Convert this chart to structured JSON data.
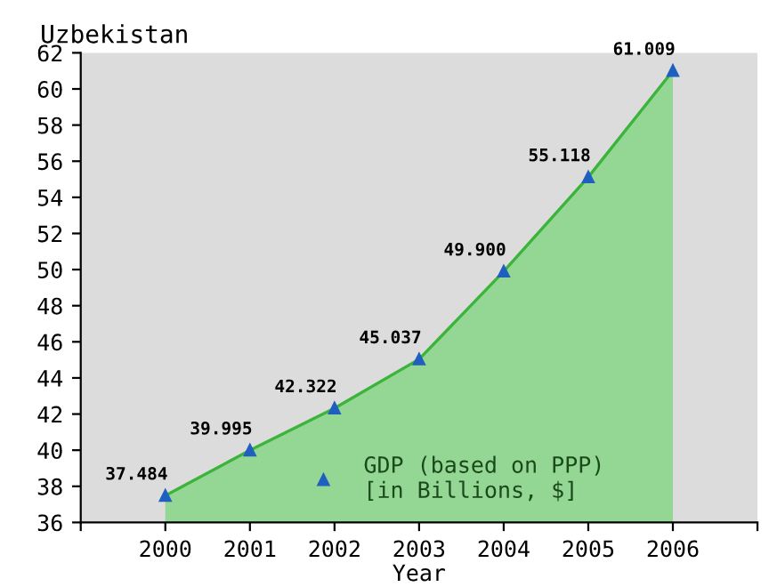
{
  "chart_data": {
    "type": "area",
    "title": "Uzbekistan",
    "xlabel": "Year",
    "x": [
      2000,
      2001,
      2002,
      2003,
      2004,
      2005,
      2006
    ],
    "series": [
      {
        "name": "GDP (based on PPP)\n[in Billions, $]",
        "color": "#3cb43c",
        "values": [
          37.484,
          39.995,
          42.322,
          45.037,
          49.9,
          55.118,
          61.009
        ],
        "value_labels": [
          "37.484",
          "39.995",
          "42.322",
          "45.037",
          "49.900",
          "55.118",
          "61.009"
        ]
      }
    ],
    "xlim": [
      1999,
      2007
    ],
    "xticks": [
      {
        "value": 1999,
        "label": null
      },
      2000,
      2001,
      2002,
      2003,
      2004,
      2005,
      2006,
      {
        "value": 2007,
        "label": null
      }
    ],
    "ylim": [
      36,
      62
    ],
    "yticks": [
      36,
      38,
      40,
      42,
      44,
      46,
      48,
      50,
      52,
      54,
      56,
      58,
      60,
      62
    ],
    "marker": "triangle",
    "legend": "bottom",
    "grid": false
  }
}
